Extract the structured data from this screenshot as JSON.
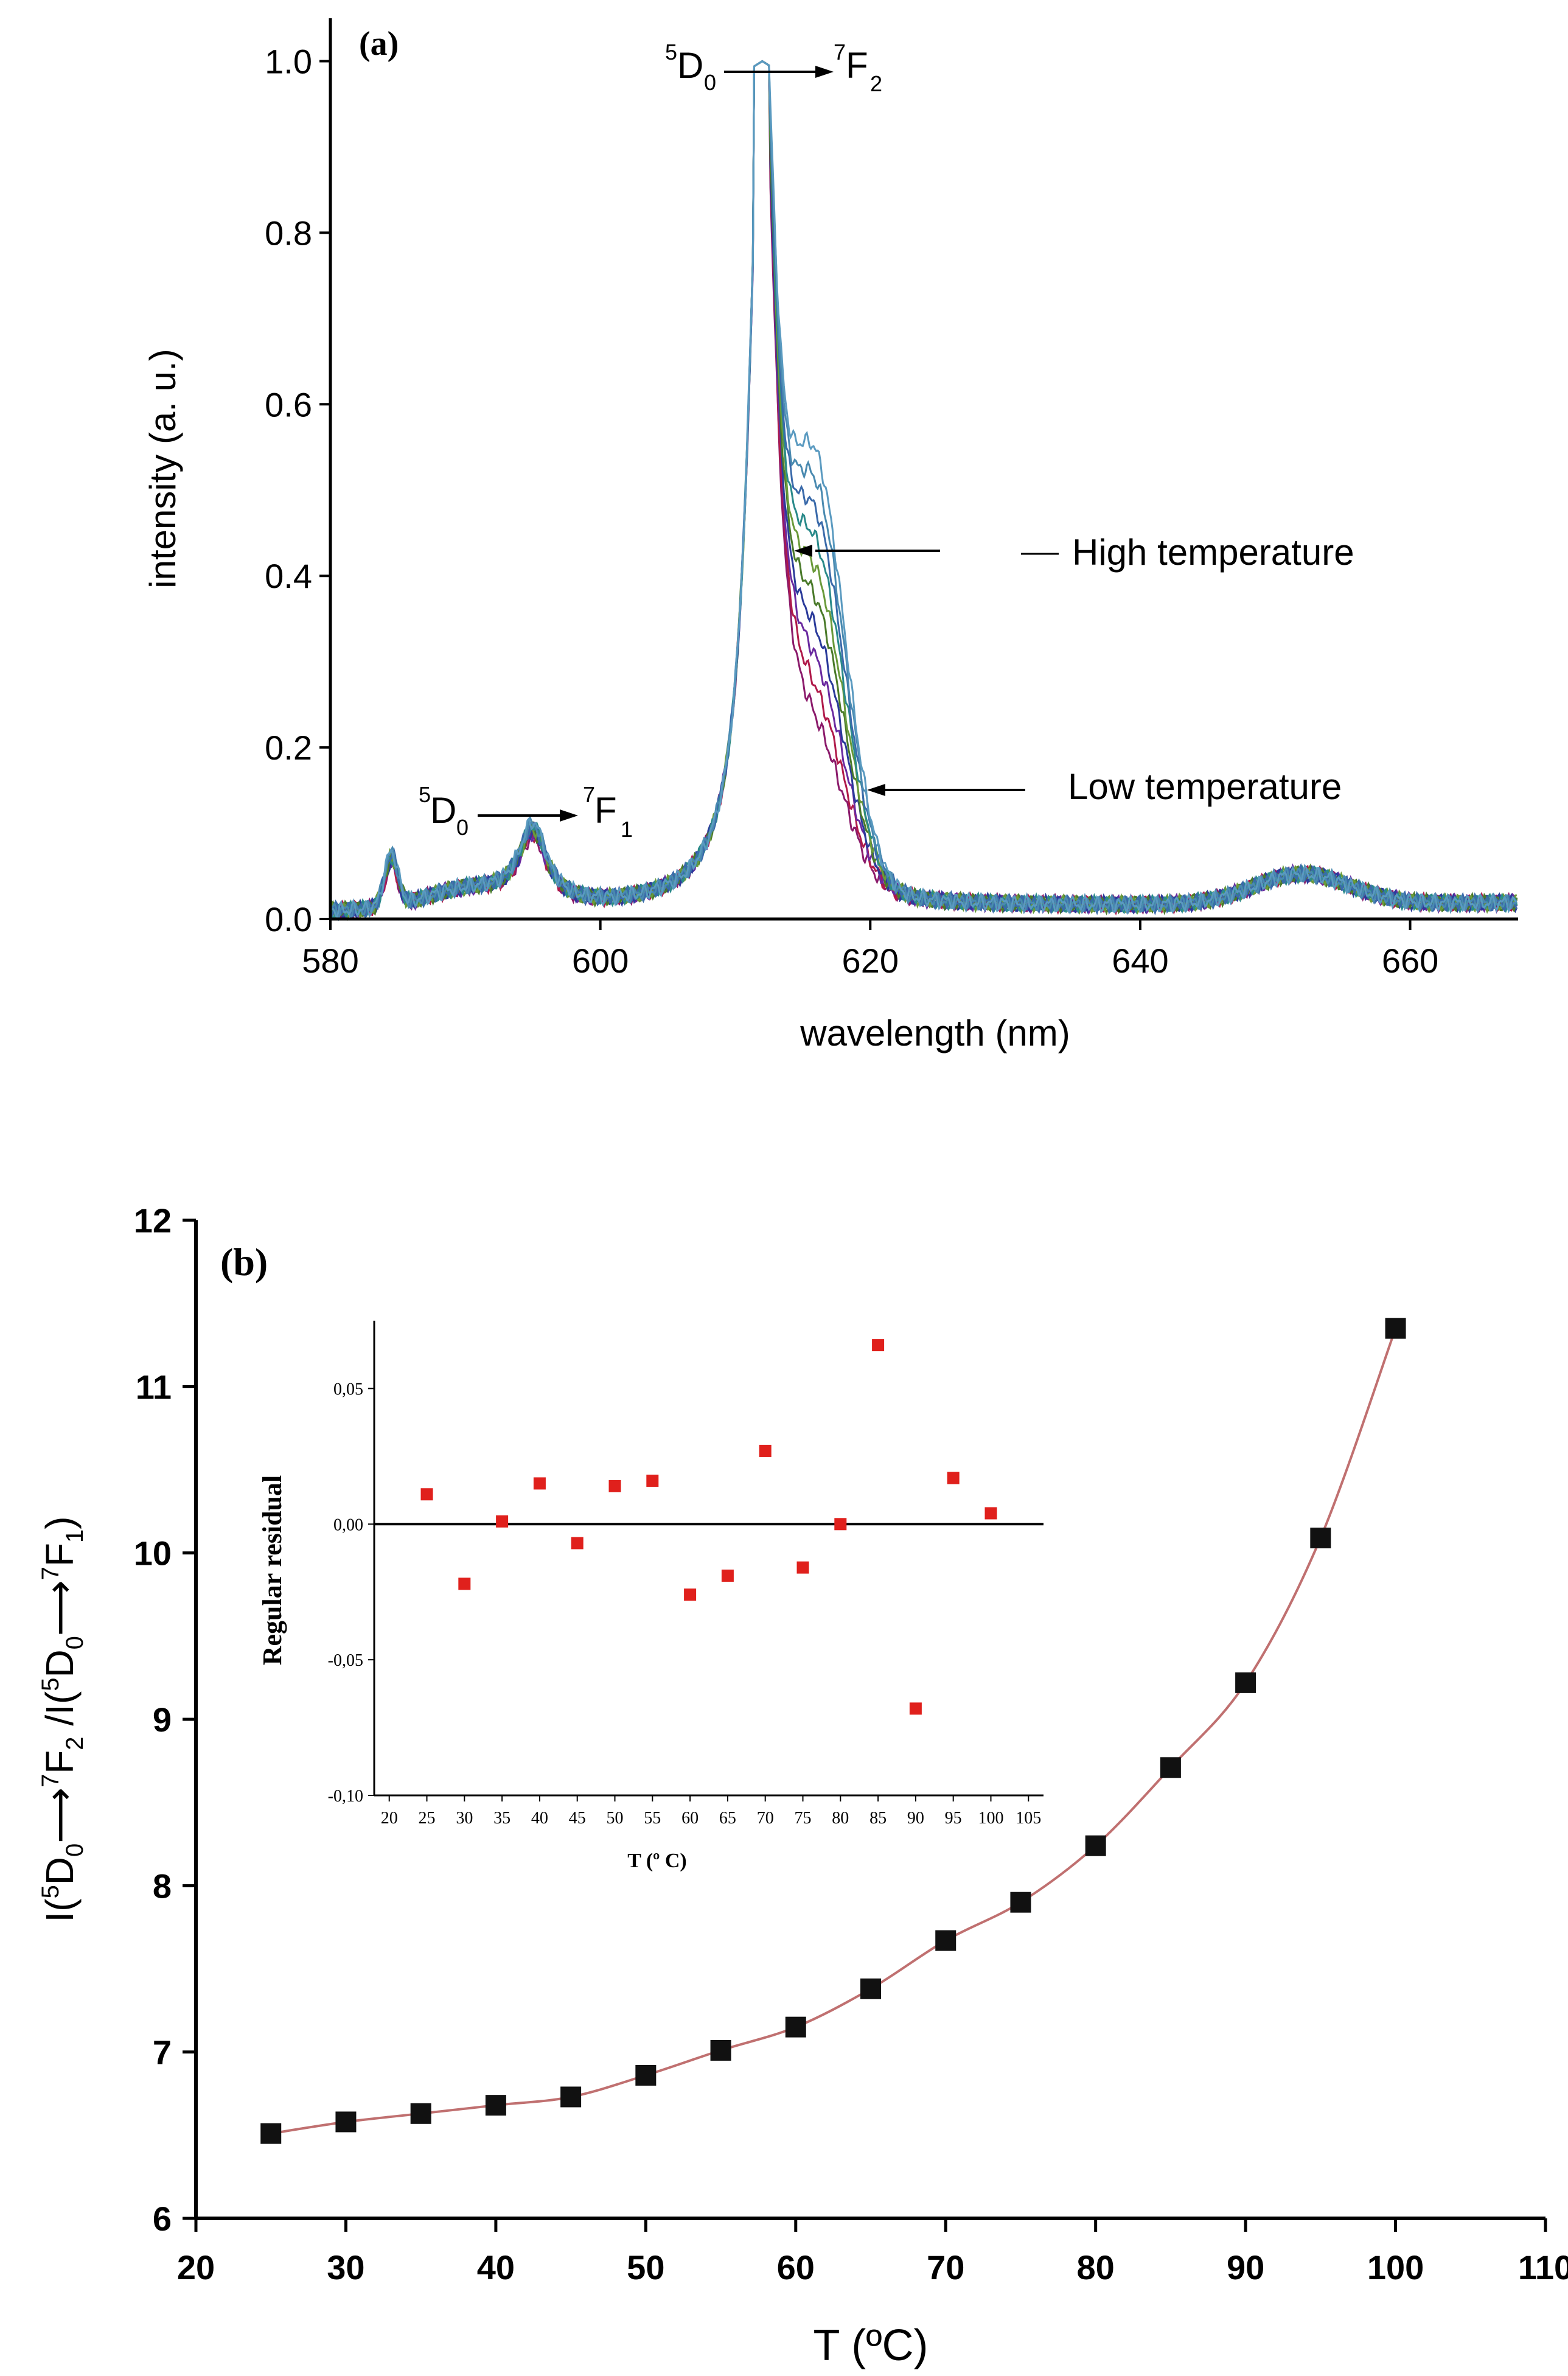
{
  "chart_data": [
    {
      "panel_label": "(a)",
      "type": "line",
      "xlabel": "wavelength (nm)",
      "ylabel": "intensity (a. u.)",
      "xlim": [
        580,
        668
      ],
      "ylim": [
        0,
        1.05
      ],
      "xticks": [
        580,
        600,
        620,
        640,
        660
      ],
      "yticks": [
        0.0,
        0.2,
        0.4,
        0.6,
        0.8,
        1.0
      ],
      "ytick_labels": [
        "0.0",
        "0.2",
        "0.4",
        "0.6",
        "0.8",
        "1.0"
      ],
      "peaks": [
        {
          "center": 584.5,
          "height": 0.055
        },
        {
          "center": 595,
          "height": 0.085
        },
        {
          "center": 612,
          "height": 1.0
        },
        {
          "center": 616,
          "height_low": 0.14,
          "height_high": 0.45
        },
        {
          "center": 652,
          "height": 0.035
        }
      ],
      "annotations": {
        "f2": {
          "super_left": "5",
          "main_left": "D",
          "sub_left": "0",
          "super_right": "7",
          "main_right": "F",
          "sub_right": "2"
        },
        "f1": {
          "super_left": "5",
          "main_left": "D",
          "sub_left": "0",
          "super_right": "7",
          "main_right": "F",
          "sub_right": "1"
        },
        "high": "High temperature",
        "low": "Low temperature"
      },
      "series_colors": [
        "#8b1a6b",
        "#b01a4a",
        "#6a2aa0",
        "#2a3a9a",
        "#4a7a2a",
        "#6a9a3a",
        "#2a8a8a",
        "#3a6aaa",
        "#4a8ab0",
        "#5a9ac0"
      ]
    },
    {
      "panel_label": "(b)",
      "type": "scatter",
      "xlabel": "T (ºC)",
      "ylabel": {
        "p1": "I(",
        "s1": "5",
        "p2": "D",
        "b1": "0",
        "p3": "⟶",
        "s2": "7",
        "p4": "F",
        "b2": "2",
        "p5": " /I(",
        "s3": "5",
        "p6": "D",
        "b3": "0",
        "p7": "⟶",
        "s4": "7",
        "p8": "F",
        "b4": "1",
        "p9": ")"
      },
      "xlim": [
        20,
        110
      ],
      "ylim": [
        6,
        12
      ],
      "xticks": [
        20,
        30,
        40,
        50,
        60,
        70,
        80,
        90,
        100,
        110
      ],
      "yticks": [
        6,
        7,
        8,
        9,
        10,
        11,
        12
      ],
      "x": [
        25,
        30,
        35,
        40,
        45,
        50,
        55,
        60,
        65,
        70,
        75,
        80,
        85,
        90,
        95,
        100
      ],
      "y": [
        6.51,
        6.58,
        6.63,
        6.68,
        6.73,
        6.86,
        7.01,
        7.15,
        7.38,
        7.67,
        7.9,
        8.24,
        8.71,
        9.22,
        10.09,
        11.35
      ],
      "fit_color": "#c07070",
      "inset": {
        "type": "scatter",
        "xlabel": "T (º C)",
        "ylabel": "Regular residual",
        "xlim": [
          18,
          107
        ],
        "ylim": [
          -0.1,
          0.075
        ],
        "xticks": [
          20,
          25,
          30,
          35,
          40,
          45,
          50,
          55,
          60,
          65,
          70,
          75,
          80,
          85,
          90,
          95,
          100,
          105
        ],
        "yticks": [
          -0.1,
          -0.05,
          0.0,
          0.05
        ],
        "ytick_labels": [
          "-0,10",
          "-0,05",
          "0,00",
          "0,05"
        ],
        "x": [
          25,
          30,
          35,
          40,
          45,
          50,
          55,
          60,
          65,
          70,
          75,
          80,
          85,
          90,
          95,
          100
        ],
        "y": [
          0.011,
          -0.022,
          0.001,
          0.015,
          -0.007,
          0.014,
          0.016,
          -0.026,
          -0.019,
          0.027,
          -0.016,
          0.0,
          0.066,
          -0.068,
          0.017,
          0.004
        ],
        "point_color": "#e0201c"
      }
    }
  ]
}
